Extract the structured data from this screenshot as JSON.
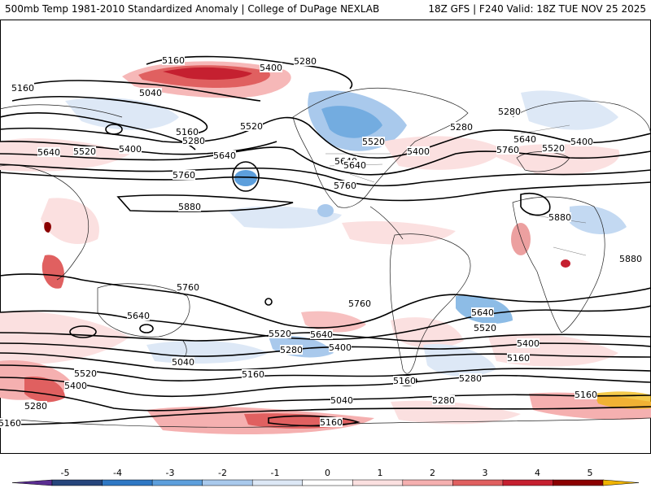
{
  "header": {
    "left": "500mb Temp 1981-2010 Standardized Anomaly | College of DuPage NEXLAB",
    "right": "18Z GFS | F240 Valid: 18Z TUE NOV 25 2025"
  },
  "colorbar": {
    "ticks": [
      "-5",
      "-4",
      "-3",
      "-2",
      "-1",
      "0",
      "1",
      "2",
      "3",
      "4",
      "5"
    ],
    "colors": [
      "#5a2d91",
      "#26457c",
      "#2f78c4",
      "#5d9fdc",
      "#a9c9ec",
      "#dde8f6",
      "#ffffff",
      "#fbe0e0",
      "#f5b0b0",
      "#e06060",
      "#c52030",
      "#8b0000",
      "#f0b400"
    ]
  },
  "contour_labels": [
    "5160",
    "5400",
    "5280",
    "5160",
    "5040",
    "5160",
    "5280",
    "5520",
    "5640",
    "5520",
    "5400",
    "5640",
    "5760",
    "5880",
    "5640",
    "5520",
    "5400",
    "5640",
    "5760",
    "5280",
    "5280",
    "5640",
    "5760",
    "5520",
    "5400",
    "5880",
    "5880",
    "5760",
    "5640",
    "5760",
    "5640",
    "5520",
    "5640",
    "5280",
    "5400",
    "5520",
    "5400",
    "5160",
    "5040",
    "5160",
    "5280",
    "5160",
    "5040",
    "5160",
    "5160",
    "5280",
    "5520",
    "5400",
    "5280",
    "5160"
  ],
  "icons": [
    "anomaly-shading",
    "geopotential-contours",
    "coastlines"
  ]
}
